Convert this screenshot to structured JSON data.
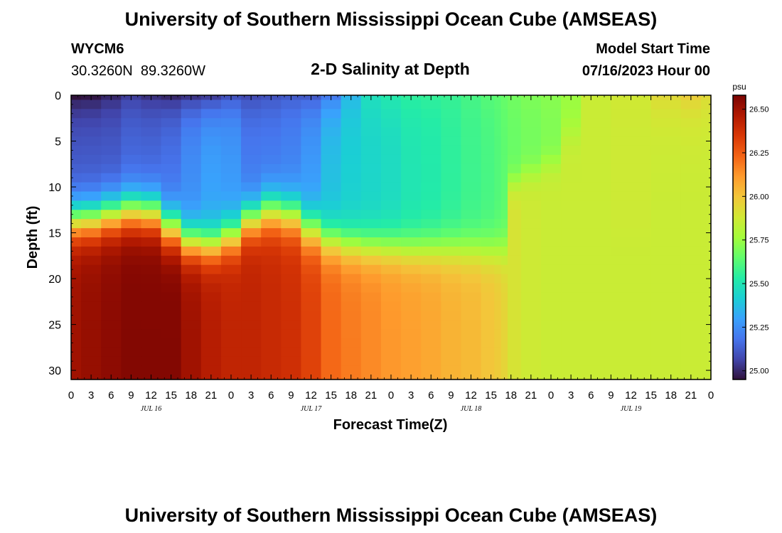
{
  "page": {
    "title": "University of Southern Mississippi Ocean Cube (AMSEAS)",
    "footer_title": "University of Southern Mississippi Ocean Cube (AMSEAS)",
    "station_id": "WYCM6",
    "station_coords": "30.3260N  89.3260W",
    "plot_title": "2-D Salinity at Depth",
    "model_start_label": "Model Start Time",
    "model_start_value": "07/16/2023 Hour 00"
  },
  "chart_data": {
    "type": "heatmap",
    "xlabel": "Forecast Time(Z)",
    "ylabel": "Depth (ft)",
    "x_range_hours": [
      0,
      96
    ],
    "y_range": [
      0,
      31
    ],
    "y_inverted": true,
    "x_tick_labels": [
      "0",
      "3",
      "6",
      "9",
      "12",
      "15",
      "18",
      "21",
      "0",
      "3",
      "6",
      "9",
      "12",
      "15",
      "18",
      "21",
      "0",
      "3",
      "6",
      "9",
      "12",
      "15",
      "18",
      "21",
      "0",
      "3",
      "6",
      "9",
      "12",
      "15",
      "18",
      "21",
      "0"
    ],
    "y_ticks": [
      0,
      5,
      10,
      15,
      20,
      25,
      30
    ],
    "date_labels": [
      {
        "label": "JUL 16",
        "hour": 12
      },
      {
        "label": "JUL 17",
        "hour": 36
      },
      {
        "label": "JUL 18",
        "hour": 60
      },
      {
        "label": "JUL 19",
        "hour": 84
      }
    ],
    "colorbar": {
      "unit": "psu",
      "min": 24.95,
      "max": 26.58,
      "ticks": [
        "25.00",
        "25.25",
        "25.50",
        "25.75",
        "26.00",
        "26.25",
        "26.50"
      ],
      "tick_values": [
        25.0,
        25.25,
        25.5,
        25.75,
        26.0,
        26.25,
        26.5
      ],
      "colors": [
        "#30123b",
        "#4145ab",
        "#4675ed",
        "#39a2fc",
        "#1bcfd4",
        "#24eca6",
        "#61fc6c",
        "#a4fc3b",
        "#d1e834",
        "#f3c63a",
        "#fe9b2d",
        "#f36315",
        "#d93806",
        "#b11901",
        "#7a0402"
      ]
    },
    "depth_levels_ft": [
      0,
      1,
      2,
      3,
      4,
      5,
      6,
      7,
      8,
      9,
      10,
      11,
      12,
      13,
      14,
      15,
      16,
      17,
      18,
      19,
      20,
      21,
      22,
      23,
      24,
      25,
      26,
      27,
      28,
      29,
      30,
      31
    ],
    "profiles": [
      {
        "hour": 0,
        "surface": 24.95,
        "upper": 25.12,
        "bottom": 26.5,
        "halocline_ft": 13.6,
        "width_ft": 1.3
      },
      {
        "hour": 3,
        "surface": 24.96,
        "upper": 25.12,
        "bottom": 26.52,
        "halocline_ft": 13.5,
        "width_ft": 1.3
      },
      {
        "hour": 6,
        "surface": 25.0,
        "upper": 25.12,
        "bottom": 26.54,
        "halocline_ft": 13.0,
        "width_ft": 1.3
      },
      {
        "hour": 9,
        "surface": 25.05,
        "upper": 25.15,
        "bottom": 26.56,
        "halocline_ft": 12.6,
        "width_ft": 1.3
      },
      {
        "hour": 12,
        "surface": 25.02,
        "upper": 25.15,
        "bottom": 26.56,
        "halocline_ft": 12.8,
        "width_ft": 1.3
      },
      {
        "hour": 15,
        "surface": 25.0,
        "upper": 25.18,
        "bottom": 26.56,
        "halocline_ft": 14.5,
        "width_ft": 1.3
      },
      {
        "hour": 18,
        "surface": 25.03,
        "upper": 25.25,
        "bottom": 26.5,
        "halocline_ft": 16.0,
        "width_ft": 1.2
      },
      {
        "hour": 21,
        "surface": 25.05,
        "upper": 25.3,
        "bottom": 26.45,
        "halocline_ft": 16.3,
        "width_ft": 1.2
      },
      {
        "hour": 24,
        "surface": 25.1,
        "upper": 25.28,
        "bottom": 26.42,
        "halocline_ft": 15.4,
        "width_ft": 1.2
      },
      {
        "hour": 27,
        "surface": 25.08,
        "upper": 25.2,
        "bottom": 26.42,
        "halocline_ft": 13.5,
        "width_ft": 1.2
      },
      {
        "hour": 30,
        "surface": 25.1,
        "upper": 25.2,
        "bottom": 26.4,
        "halocline_ft": 12.6,
        "width_ft": 1.3
      },
      {
        "hour": 33,
        "surface": 25.12,
        "upper": 25.22,
        "bottom": 26.38,
        "halocline_ft": 13.0,
        "width_ft": 1.3
      },
      {
        "hour": 36,
        "surface": 25.12,
        "upper": 25.28,
        "bottom": 26.32,
        "halocline_ft": 14.6,
        "width_ft": 1.3
      },
      {
        "hour": 39,
        "surface": 25.2,
        "upper": 25.38,
        "bottom": 26.22,
        "halocline_ft": 15.8,
        "width_ft": 1.2
      },
      {
        "hour": 42,
        "surface": 25.35,
        "upper": 25.42,
        "bottom": 26.18,
        "halocline_ft": 16.3,
        "width_ft": 1.2
      },
      {
        "hour": 45,
        "surface": 25.48,
        "upper": 25.44,
        "bottom": 26.15,
        "halocline_ft": 16.5,
        "width_ft": 1.2
      },
      {
        "hour": 48,
        "surface": 25.52,
        "upper": 25.46,
        "bottom": 26.12,
        "halocline_ft": 16.6,
        "width_ft": 1.2
      },
      {
        "hour": 51,
        "surface": 25.55,
        "upper": 25.5,
        "bottom": 26.1,
        "halocline_ft": 16.8,
        "width_ft": 1.2
      },
      {
        "hour": 54,
        "surface": 25.56,
        "upper": 25.52,
        "bottom": 26.08,
        "halocline_ft": 16.8,
        "width_ft": 1.2
      },
      {
        "hour": 57,
        "surface": 25.57,
        "upper": 25.55,
        "bottom": 26.05,
        "halocline_ft": 16.8,
        "width_ft": 1.2
      },
      {
        "hour": 60,
        "surface": 25.6,
        "upper": 25.58,
        "bottom": 26.03,
        "halocline_ft": 16.9,
        "width_ft": 1.2
      },
      {
        "hour": 63,
        "surface": 25.63,
        "upper": 25.6,
        "bottom": 26.0,
        "halocline_ft": 17.0,
        "width_ft": 1.2
      },
      {
        "hour": 64,
        "surface": 25.64,
        "upper": 25.62,
        "bottom": 25.98,
        "halocline_ft": 17.0,
        "width_ft": 1.2
      },
      {
        "hour": 65,
        "surface": 25.66,
        "upper": 25.64,
        "bottom": 25.95,
        "halocline_ft": 17.0,
        "width_ft": 1.2
      },
      {
        "hour": 66,
        "surface": 25.68,
        "upper": 25.66,
        "bottom": 25.9,
        "halocline_ft": 9.5,
        "width_ft": 0.8
      },
      {
        "hour": 69,
        "surface": 25.7,
        "upper": 25.68,
        "bottom": 25.87,
        "halocline_ft": 8.5,
        "width_ft": 0.8
      },
      {
        "hour": 72,
        "surface": 25.72,
        "upper": 25.7,
        "bottom": 25.86,
        "halocline_ft": 7.5,
        "width_ft": 0.8
      },
      {
        "hour": 75,
        "surface": 25.75,
        "upper": 25.74,
        "bottom": 25.86,
        "halocline_ft": 4.0,
        "width_ft": 1.0
      },
      {
        "hour": 78,
        "surface": 25.86,
        "upper": 25.86,
        "bottom": 25.86,
        "halocline_ft": 15.0,
        "width_ft": 1.0
      },
      {
        "hour": 84,
        "surface": 25.88,
        "upper": 25.87,
        "bottom": 25.86,
        "halocline_ft": 15.0,
        "width_ft": 1.0
      },
      {
        "hour": 90,
        "surface": 25.95,
        "upper": 25.88,
        "bottom": 25.86,
        "halocline_ft": 4.0,
        "width_ft": 3.0
      },
      {
        "hour": 93,
        "surface": 26.0,
        "upper": 25.88,
        "bottom": 25.86,
        "halocline_ft": 4.0,
        "width_ft": 3.0
      },
      {
        "hour": 96,
        "surface": 25.95,
        "upper": 25.88,
        "bottom": 25.86,
        "halocline_ft": 4.0,
        "width_ft": 3.0
      }
    ]
  }
}
